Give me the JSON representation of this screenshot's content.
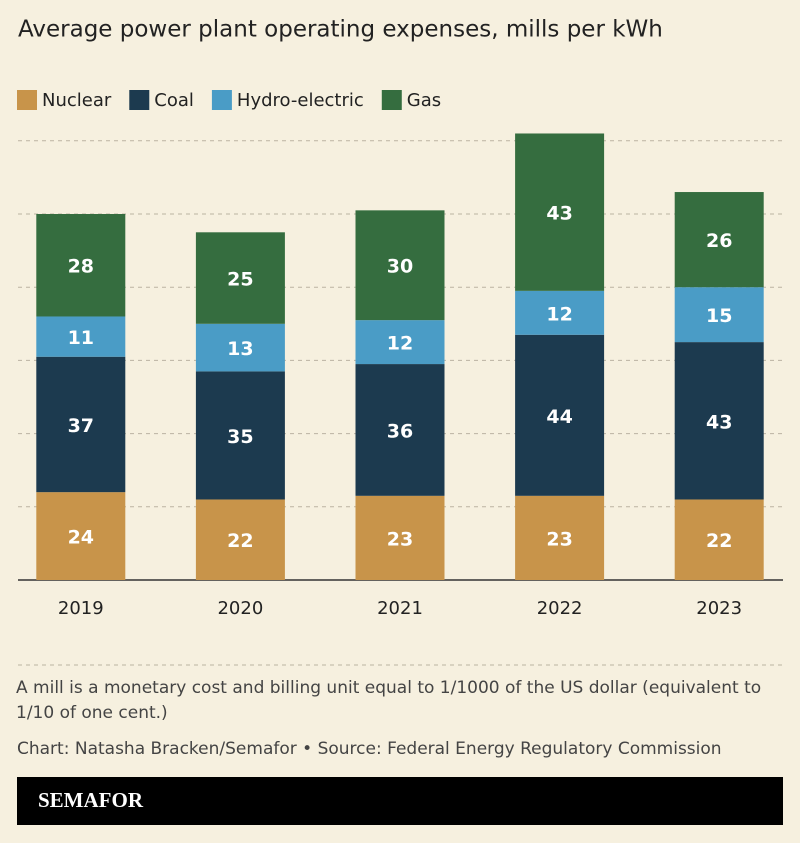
{
  "chart_data": {
    "type": "stacked-bar",
    "title": "Average power plant operating expenses, mills per kWh",
    "categories": [
      "2019",
      "2020",
      "2021",
      "2022",
      "2023"
    ],
    "series": [
      {
        "name": "Nuclear",
        "color": "#c8944a",
        "values": [
          24,
          22,
          23,
          23,
          22
        ]
      },
      {
        "name": "Coal",
        "color": "#1c3a4f",
        "values": [
          37,
          35,
          36,
          44,
          43
        ]
      },
      {
        "name": "Hydro-electric",
        "color": "#4a9cc6",
        "values": [
          11,
          13,
          12,
          12,
          15
        ]
      },
      {
        "name": "Gas",
        "color": "#356d3f",
        "values": [
          28,
          25,
          30,
          43,
          26
        ]
      }
    ],
    "ylim": [
      0,
      125
    ],
    "yticks": [
      0,
      20,
      40,
      60,
      80,
      100,
      120
    ],
    "grid": true,
    "note": "A mill is a monetary cost and billing unit equal to 1/1000 of the US dollar (equivalent to 1/10 of one cent.)",
    "credit": "Chart: Natasha Bracken/Semafor • Source: Federal Energy Regulatory Commission",
    "brand": "SEMAFOR"
  }
}
